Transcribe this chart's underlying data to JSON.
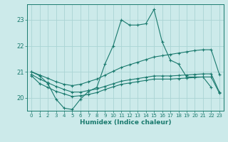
{
  "xlabel": "Humidex (Indice chaleur)",
  "bg_color": "#cceaea",
  "grid_color": "#aad4d4",
  "line_color": "#1a7a6e",
  "xlim": [
    -0.5,
    23.5
  ],
  "ylim": [
    19.5,
    23.6
  ],
  "xticks": [
    0,
    1,
    2,
    3,
    4,
    5,
    6,
    7,
    8,
    9,
    10,
    11,
    12,
    13,
    14,
    15,
    16,
    17,
    18,
    19,
    20,
    21,
    22,
    23
  ],
  "yticks": [
    20,
    21,
    22,
    23
  ],
  "x_main": [
    0,
    1,
    2,
    3,
    4,
    5,
    6,
    7,
    8,
    9,
    10,
    11,
    12,
    13,
    14,
    15,
    16,
    17,
    18,
    19,
    20,
    21,
    22
  ],
  "y_main": [
    21.0,
    20.85,
    20.55,
    19.95,
    19.6,
    19.55,
    19.95,
    20.25,
    20.4,
    21.3,
    22.0,
    23.0,
    22.8,
    22.8,
    22.85,
    23.4,
    22.15,
    21.45,
    21.3,
    20.8,
    20.8,
    20.8,
    20.4
  ],
  "x_line1": [
    0,
    1,
    2,
    3,
    4,
    5,
    6,
    7,
    8,
    9,
    10,
    11,
    12,
    13,
    14,
    15,
    16,
    17,
    18,
    19,
    20,
    21,
    22,
    23
  ],
  "y_line1": [
    21.0,
    20.88,
    20.75,
    20.62,
    20.52,
    20.47,
    20.52,
    20.62,
    20.72,
    20.87,
    21.02,
    21.17,
    21.27,
    21.37,
    21.47,
    21.57,
    21.62,
    21.67,
    21.72,
    21.77,
    21.82,
    21.85,
    21.85,
    20.9
  ],
  "x_line2": [
    0,
    1,
    2,
    3,
    4,
    5,
    6,
    7,
    8,
    9,
    10,
    11,
    12,
    13,
    14,
    15,
    16,
    17,
    18,
    19,
    20,
    21,
    22,
    23
  ],
  "y_line2": [
    20.9,
    20.72,
    20.58,
    20.44,
    20.32,
    20.22,
    20.22,
    20.28,
    20.34,
    20.44,
    20.54,
    20.64,
    20.69,
    20.74,
    20.79,
    20.84,
    20.84,
    20.84,
    20.86,
    20.88,
    20.9,
    20.92,
    20.92,
    20.22
  ],
  "x_line3": [
    0,
    1,
    2,
    3,
    4,
    5,
    6,
    7,
    8,
    9,
    10,
    11,
    12,
    13,
    14,
    15,
    16,
    17,
    18,
    19,
    20,
    21,
    22,
    23
  ],
  "y_line3": [
    20.85,
    20.55,
    20.4,
    20.25,
    20.15,
    20.05,
    20.08,
    20.13,
    20.2,
    20.32,
    20.42,
    20.52,
    20.57,
    20.62,
    20.67,
    20.72,
    20.72,
    20.72,
    20.74,
    20.76,
    20.78,
    20.8,
    20.8,
    20.18
  ]
}
